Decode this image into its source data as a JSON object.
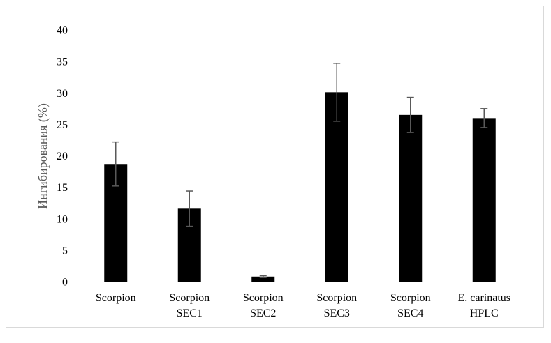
{
  "chart_data": {
    "type": "bar",
    "title": "",
    "xlabel": "",
    "ylabel": "Ингибирования (%)",
    "ylim": [
      0,
      40
    ],
    "yticks": [
      0,
      5,
      10,
      15,
      20,
      25,
      30,
      35,
      40
    ],
    "grid": false,
    "legend": "none",
    "categories": [
      [
        "Scorpion"
      ],
      [
        "Scorpion",
        "SEC1"
      ],
      [
        "Scorpion",
        "SEC2"
      ],
      [
        "Scorpion",
        "SEC3"
      ],
      [
        "Scorpion",
        "SEC4"
      ],
      [
        "E. carinatus",
        "HPLC"
      ]
    ],
    "series": [
      {
        "values": [
          18.7,
          11.6,
          0.8,
          30.1,
          26.5,
          26.0
        ],
        "error": [
          3.5,
          2.8,
          0.15,
          4.6,
          2.8,
          1.5
        ],
        "color": "#000000"
      }
    ],
    "error_bar_color": "#595959",
    "axis_color": "#bfbfbf"
  }
}
